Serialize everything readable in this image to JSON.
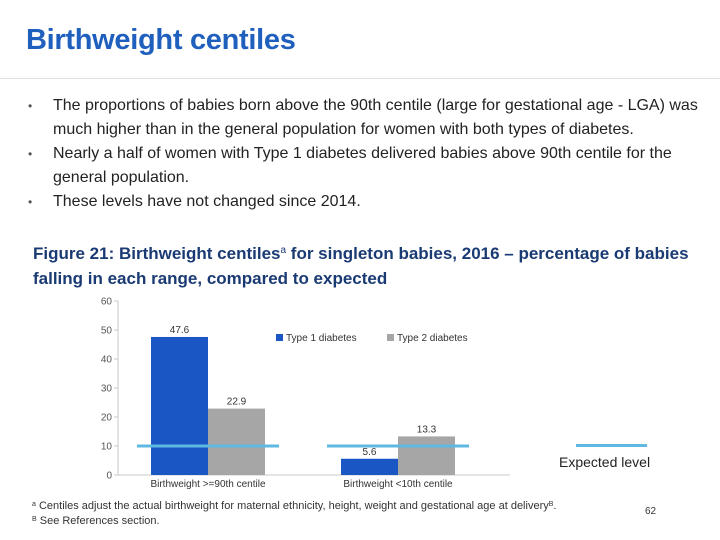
{
  "slide": {
    "title": "Birthweight centiles",
    "bullets": [
      "The proportions of babies born above the 90th centile (large for gestational age - LGA) was much higher than in the general population for women with both types of diabetes.",
      "Nearly a half of women with Type 1 diabetes delivered babies above 90th centile for the general population.",
      "These levels have not changed since 2014."
    ],
    "bullet_symbol": "•",
    "figure_title_part1": "Figure 21: Birthweight centiles",
    "figure_title_sup": "a",
    "figure_title_part2": " for singleton babies, 2016 – percentage of babies falling in each range, compared to expected",
    "expected_label": "Expected level",
    "footnote_a_marker": "a",
    "footnote_a_text": "Centiles adjust the actual birthweight for maternal ethnicity, height, weight and gestational age at delivery",
    "footnote_a_ref": "B",
    "footnote_b_marker": "B",
    "footnote_b_text": "See References section.",
    "page_number": "62"
  },
  "colors": {
    "title": "#1f5fbd",
    "type1": "#1a56c4",
    "type2": "#a6a6a6",
    "expected": "#5fb8e0"
  },
  "chart_data": {
    "type": "bar",
    "categories": [
      "Birthweight >=90th centile",
      "Birthweight <10th centile"
    ],
    "series": [
      {
        "name": "Type 1 diabetes",
        "values": [
          47.6,
          5.6
        ],
        "labels": [
          "47.6",
          "5.6"
        ],
        "color": "#1a56c4"
      },
      {
        "name": "Type 2 diabetes",
        "values": [
          22.9,
          13.3
        ],
        "labels": [
          "22.9",
          "13.3"
        ],
        "color": "#a6a6a6"
      }
    ],
    "expected": [
      10,
      10
    ],
    "ylim": [
      0,
      60
    ],
    "yticks": [
      0,
      10,
      20,
      30,
      40,
      50,
      60
    ],
    "ytick_labels": [
      "0",
      "10",
      "20",
      "30",
      "40",
      "50",
      "60"
    ],
    "legend_position": "top-right",
    "grid": false
  }
}
